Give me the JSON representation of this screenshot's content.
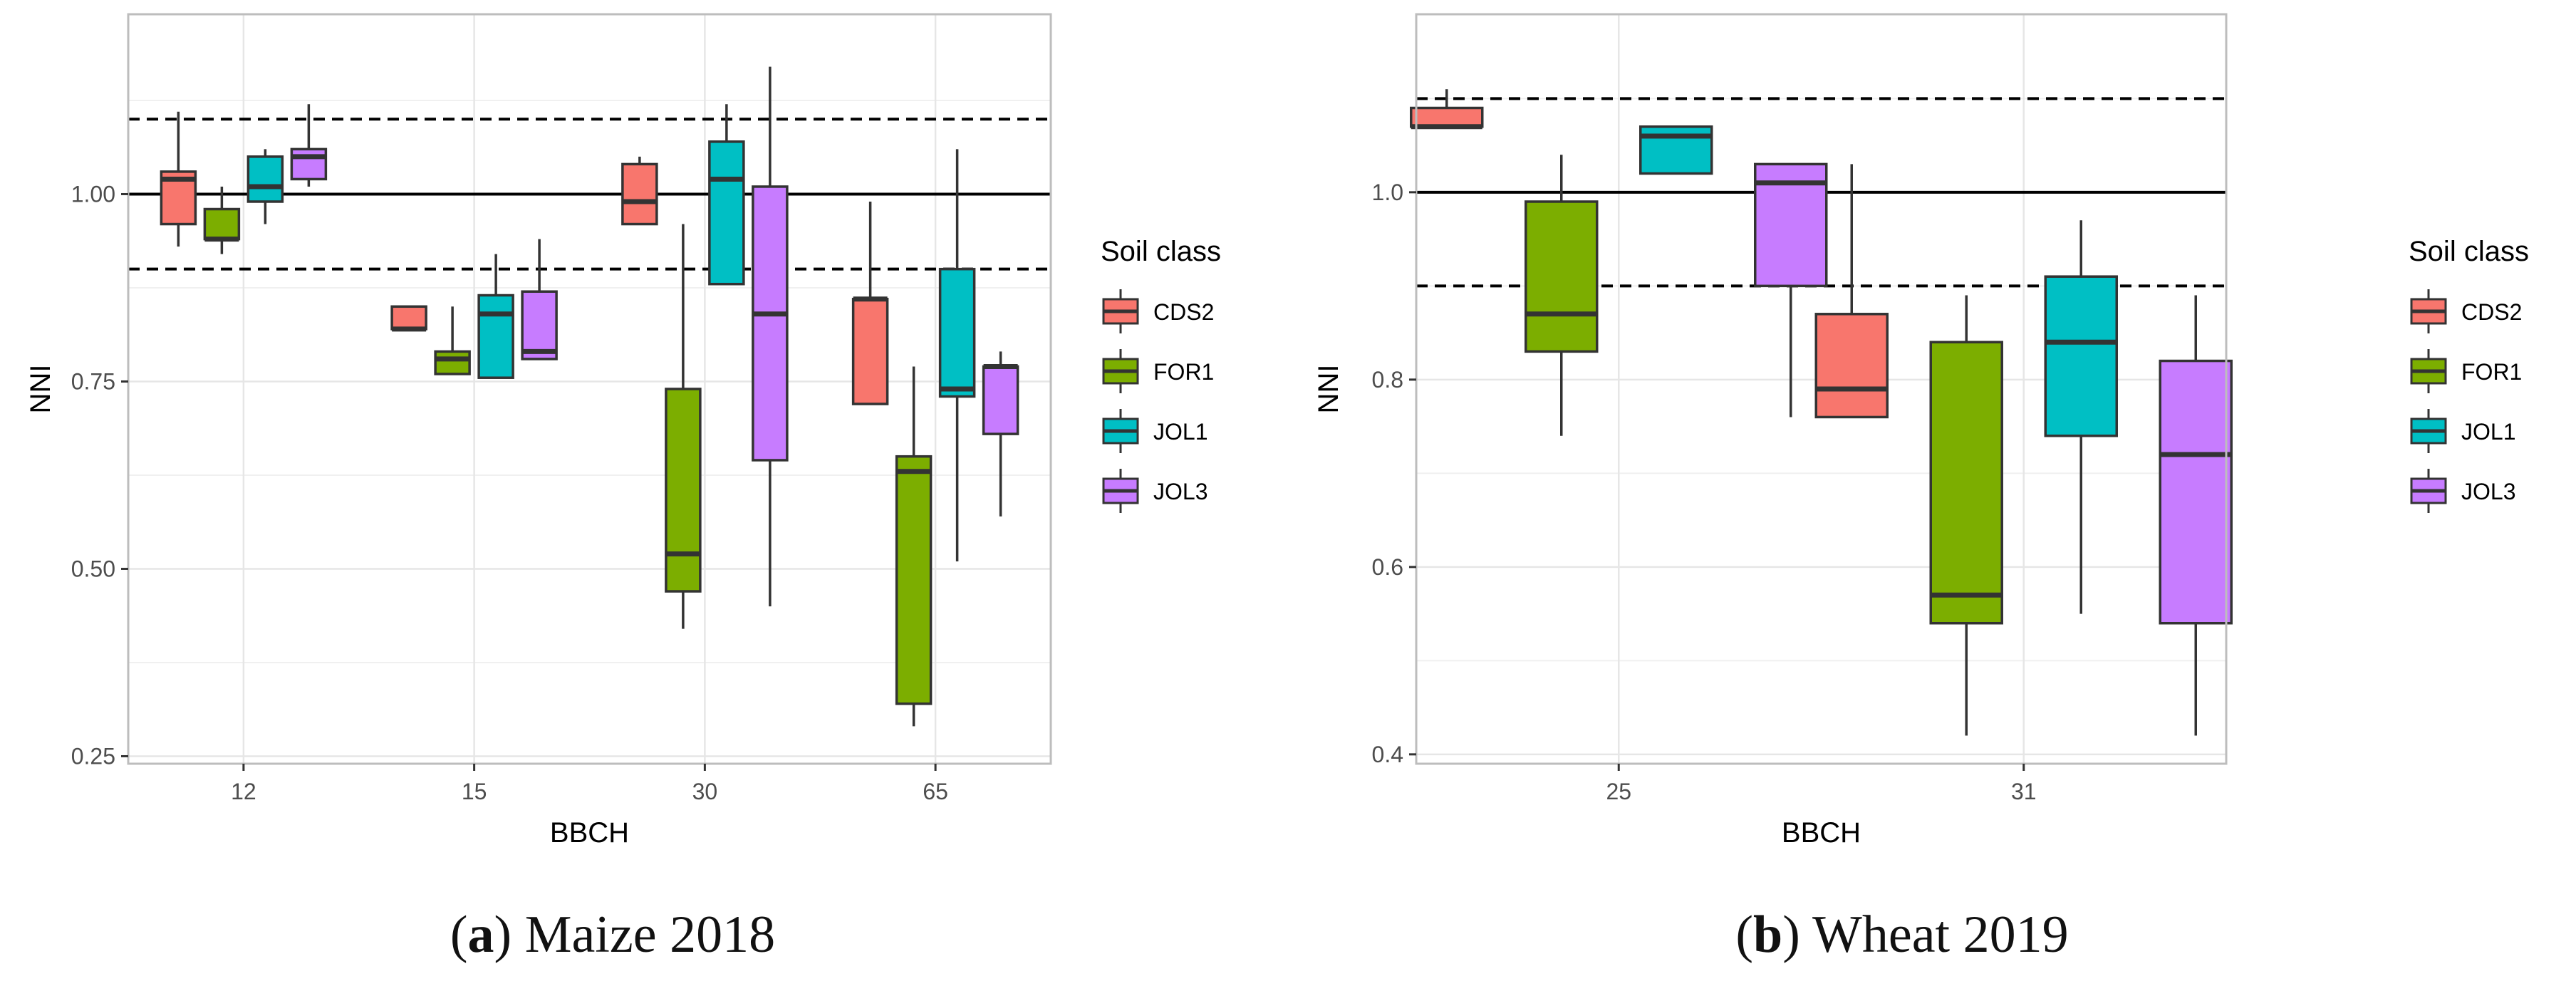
{
  "colors": {
    "CDS2": "#F8766D",
    "FOR1": "#7CAE00",
    "JOL1": "#00BFC4",
    "JOL3": "#C77CFF",
    "panel_border": "#bdbdbd",
    "grid": "#e6e6e6",
    "reference": "#000000"
  },
  "chart_data": [
    {
      "type": "boxplot",
      "title": "",
      "xlabel": "BBCH",
      "ylabel": "NNI",
      "categories": [
        "12",
        "15",
        "30",
        "65"
      ],
      "ylim": [
        0.24,
        1.24
      ],
      "yticks": [
        "0.25",
        "0.50",
        "0.75",
        "1.00"
      ],
      "ytick_values": [
        0.25,
        0.5,
        0.75,
        1.0
      ],
      "minor_grid": [
        0.375,
        0.625,
        0.875,
        1.125
      ],
      "reference_lines": {
        "solid": 1.0,
        "dashed": [
          0.9,
          1.1
        ]
      },
      "legend": {
        "title": "Soil class",
        "entries": [
          "CDS2",
          "FOR1",
          "JOL1",
          "JOL3"
        ],
        "position": "right"
      },
      "caption": {
        "letter": "a",
        "text": "Maize 2018"
      },
      "series": [
        {
          "name": "CDS2",
          "boxes": [
            {
              "category": "12",
              "min": 0.93,
              "q1": 0.96,
              "median": 1.02,
              "q3": 1.03,
              "max": 1.11
            },
            {
              "category": "15",
              "min": 0.82,
              "q1": 0.82,
              "median": 0.82,
              "q3": 0.85,
              "max": 0.85
            },
            {
              "category": "30",
              "min": 0.96,
              "q1": 0.96,
              "median": 0.99,
              "q3": 1.04,
              "max": 1.05
            },
            {
              "category": "65",
              "min": 0.72,
              "q1": 0.72,
              "median": 0.86,
              "q3": 0.86,
              "max": 0.99
            }
          ]
        },
        {
          "name": "FOR1",
          "boxes": [
            {
              "category": "12",
              "min": 0.92,
              "q1": 0.94,
              "median": 0.94,
              "q3": 0.98,
              "max": 1.01
            },
            {
              "category": "15",
              "min": 0.76,
              "q1": 0.76,
              "median": 0.78,
              "q3": 0.79,
              "max": 0.85
            },
            {
              "category": "30",
              "min": 0.42,
              "q1": 0.47,
              "median": 0.52,
              "q3": 0.74,
              "max": 0.96
            },
            {
              "category": "65",
              "min": 0.29,
              "q1": 0.32,
              "median": 0.63,
              "q3": 0.65,
              "max": 0.77
            }
          ]
        },
        {
          "name": "JOL1",
          "boxes": [
            {
              "category": "12",
              "min": 0.96,
              "q1": 0.99,
              "median": 1.01,
              "q3": 1.05,
              "max": 1.06
            },
            {
              "category": "15",
              "min": 0.755,
              "q1": 0.755,
              "median": 0.84,
              "q3": 0.865,
              "max": 0.92
            },
            {
              "category": "30",
              "min": 0.88,
              "q1": 0.88,
              "median": 1.02,
              "q3": 1.07,
              "max": 1.12
            },
            {
              "category": "65",
              "min": 0.51,
              "q1": 0.73,
              "median": 0.74,
              "q3": 0.9,
              "max": 1.06
            }
          ]
        },
        {
          "name": "JOL3",
          "boxes": [
            {
              "category": "12",
              "min": 1.01,
              "q1": 1.02,
              "median": 1.05,
              "q3": 1.06,
              "max": 1.12
            },
            {
              "category": "15",
              "min": 0.78,
              "q1": 0.78,
              "median": 0.79,
              "q3": 0.87,
              "max": 0.94
            },
            {
              "category": "30",
              "min": 0.45,
              "q1": 0.645,
              "median": 0.84,
              "q3": 1.01,
              "max": 1.17
            },
            {
              "category": "65",
              "min": 0.57,
              "q1": 0.68,
              "median": 0.77,
              "q3": 0.77,
              "max": 0.79
            }
          ]
        }
      ]
    },
    {
      "type": "boxplot",
      "title": "",
      "xlabel": "BBCH",
      "ylabel": "NNI",
      "categories": [
        "25",
        "31"
      ],
      "ylim": [
        0.39,
        1.19
      ],
      "yticks": [
        "0.4",
        "0.6",
        "0.8",
        "1.0"
      ],
      "ytick_values": [
        0.4,
        0.6,
        0.8,
        1.0
      ],
      "minor_grid": [
        0.5,
        0.7,
        0.9,
        1.1
      ],
      "reference_lines": {
        "solid": 1.0,
        "dashed": [
          0.9,
          1.1
        ]
      },
      "legend": {
        "title": "Soil class",
        "entries": [
          "CDS2",
          "FOR1",
          "JOL1",
          "JOL3"
        ],
        "position": "right"
      },
      "caption": {
        "letter": "b",
        "text": "Wheat 2019"
      },
      "series": [
        {
          "name": "CDS2",
          "boxes": [
            {
              "category": "25",
              "min": 1.07,
              "q1": 1.07,
              "median": 1.07,
              "q3": 1.09,
              "max": 1.11
            },
            {
              "category": "31",
              "min": 0.76,
              "q1": 0.76,
              "median": 0.79,
              "q3": 0.87,
              "max": 1.03
            }
          ]
        },
        {
          "name": "FOR1",
          "boxes": [
            {
              "category": "25",
              "min": 0.74,
              "q1": 0.83,
              "median": 0.87,
              "q3": 0.99,
              "max": 1.04
            },
            {
              "category": "31",
              "min": 0.42,
              "q1": 0.54,
              "median": 0.57,
              "q3": 0.84,
              "max": 0.89
            }
          ]
        },
        {
          "name": "JOL1",
          "boxes": [
            {
              "category": "25",
              "min": 1.02,
              "q1": 1.02,
              "median": 1.06,
              "q3": 1.07,
              "max": 1.07
            },
            {
              "category": "31",
              "min": 0.55,
              "q1": 0.74,
              "median": 0.84,
              "q3": 0.91,
              "max": 0.97
            }
          ]
        },
        {
          "name": "JOL3",
          "boxes": [
            {
              "category": "25",
              "min": 0.76,
              "q1": 0.9,
              "median": 1.01,
              "q3": 1.03,
              "max": 1.03
            },
            {
              "category": "31",
              "min": 0.42,
              "q1": 0.54,
              "median": 0.72,
              "q3": 0.82,
              "max": 0.89
            }
          ]
        }
      ]
    }
  ]
}
